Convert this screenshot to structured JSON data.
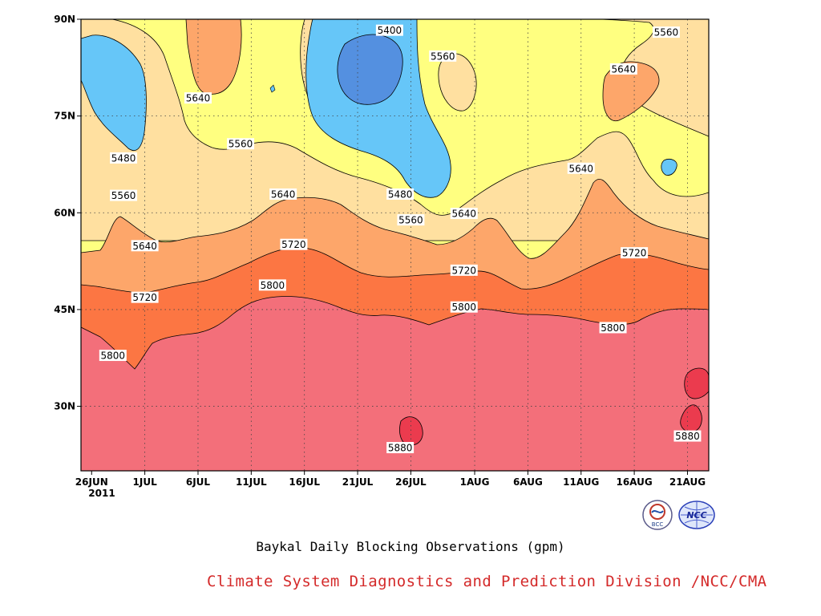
{
  "chart_data": {
    "type": "heatmap",
    "title": "Baykal Daily Blocking Observations (gpm)",
    "credit": "Climate System Diagnostics and Prediction Division /NCC/CMA",
    "x_ticks": [
      "26JUN",
      "1JUL",
      "6JUL",
      "11JUL",
      "16JUL",
      "21JUL",
      "26JUL",
      "1AUG",
      "6AUG",
      "11AUG",
      "16AUG",
      "21AUG"
    ],
    "x_year": "2011",
    "y_ticks": [
      "30N",
      "45N",
      "60N",
      "75N",
      "90N"
    ],
    "y_tick_values": [
      30,
      45,
      60,
      75,
      90
    ],
    "ylim": [
      20,
      90
    ],
    "x_range": [
      "2011-06-25",
      "2011-08-23"
    ],
    "grid": "dotted",
    "contour_levels": [
      5400,
      5480,
      5560,
      5640,
      5720,
      5800,
      5880
    ],
    "fill_colors": {
      "lt5400": "#5490e0",
      "5400-5480": "#66c6f8",
      "5480-5560": "#ffff80",
      "5560-5640": "#ffe0a0",
      "5640-5720": "#fda66a",
      "5720-5800": "#fc7643",
      "5800-5880": "#f36f7a",
      "gt5880": "#eb3b4e"
    },
    "contour_labels": [
      {
        "text": "5400",
        "date": "2011-07-24",
        "lat": 88.3
      },
      {
        "text": "5560",
        "date": "2011-07-29",
        "lat": 84.3
      },
      {
        "text": "5560",
        "date": "2011-08-19",
        "lat": 88.0
      },
      {
        "text": "5640",
        "date": "2011-08-15",
        "lat": 82.3
      },
      {
        "text": "5640",
        "date": "2011-07-06",
        "lat": 77.8
      },
      {
        "text": "5560",
        "date": "2011-07-10",
        "lat": 70.7
      },
      {
        "text": "5480",
        "date": "2011-06-29",
        "lat": 68.5
      },
      {
        "text": "5640",
        "date": "2011-08-11",
        "lat": 66.9
      },
      {
        "text": "5560",
        "date": "2011-06-29",
        "lat": 62.7
      },
      {
        "text": "5640",
        "date": "2011-07-14",
        "lat": 62.9
      },
      {
        "text": "5480",
        "date": "2011-07-25",
        "lat": 62.9
      },
      {
        "text": "5560",
        "date": "2011-07-26",
        "lat": 58.9
      },
      {
        "text": "5640",
        "date": "2011-07-31",
        "lat": 59.9
      },
      {
        "text": "5640",
        "date": "2011-07-01",
        "lat": 54.9
      },
      {
        "text": "5720",
        "date": "2011-07-15",
        "lat": 55.1
      },
      {
        "text": "5720",
        "date": "2011-07-31",
        "lat": 51.1
      },
      {
        "text": "5720",
        "date": "2011-08-16",
        "lat": 53.8
      },
      {
        "text": "5720",
        "date": "2011-07-01",
        "lat": 46.9
      },
      {
        "text": "5800",
        "date": "2011-07-13",
        "lat": 48.8
      },
      {
        "text": "5800",
        "date": "2011-07-31",
        "lat": 45.4
      },
      {
        "text": "5800",
        "date": "2011-08-14",
        "lat": 42.2
      },
      {
        "text": "5800",
        "date": "2011-06-28",
        "lat": 37.9
      },
      {
        "text": "5880",
        "date": "2011-07-25",
        "lat": 23.6
      },
      {
        "text": "5880",
        "date": "2011-08-21",
        "lat": 25.4
      }
    ]
  }
}
